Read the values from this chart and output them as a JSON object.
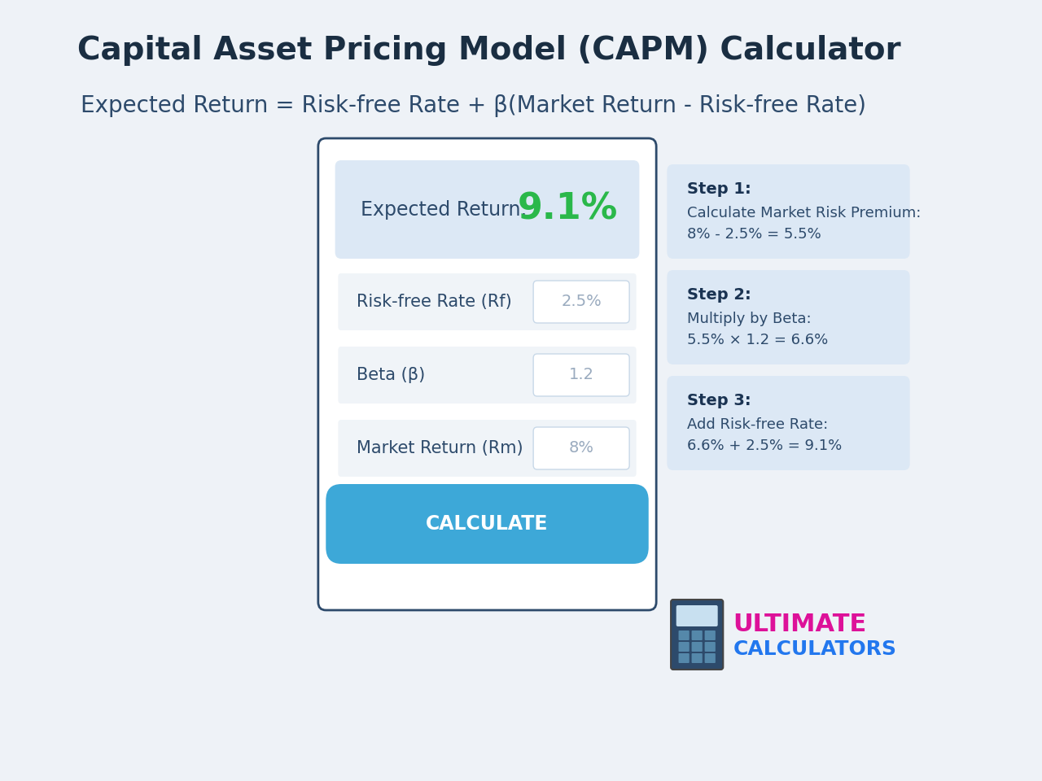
{
  "title": "Capital Asset Pricing Model (CAPM) Calculator",
  "formula": "Expected Return = Risk-free Rate + β(Market Return - Risk-free Rate)",
  "bg_color": "#eef2f7",
  "card_bg": "#ffffff",
  "card_border": "#2d4a6b",
  "result_bg": "#dce8f5",
  "result_label": "Expected Return:",
  "result_value": "9.1%",
  "result_color": "#2ab84a",
  "fields": [
    {
      "label": "Risk-free Rate (Rf)",
      "value": "2.5%"
    },
    {
      "label": "Beta (β)",
      "value": "1.2"
    },
    {
      "label": "Market Return (Rm)",
      "value": "8%"
    }
  ],
  "field_bg": "#f0f4f8",
  "input_bg": "#ffffff",
  "input_border": "#c8d8e8",
  "input_text": "#9aabbf",
  "btn_text": "CALCULATE",
  "btn_bg": "#3da8d8",
  "steps": [
    {
      "title": "Step 1:",
      "line1": "Calculate Market Risk Premium:",
      "line2": "8% - 2.5% = 5.5%"
    },
    {
      "title": "Step 2:",
      "line1": "Multiply by Beta:",
      "line2": "5.5% × 1.2 = 6.6%"
    },
    {
      "title": "Step 3:",
      "line1": "Add Risk-free Rate:",
      "line2": "6.6% + 2.5% = 9.1%"
    }
  ],
  "step_bg": "#dce8f5",
  "step_title_color": "#1a3352",
  "step_text_color": "#2d4a6b",
  "title_color": "#1a2e42",
  "formula_color": "#2d4a6b",
  "label_color": "#2d4a6b"
}
